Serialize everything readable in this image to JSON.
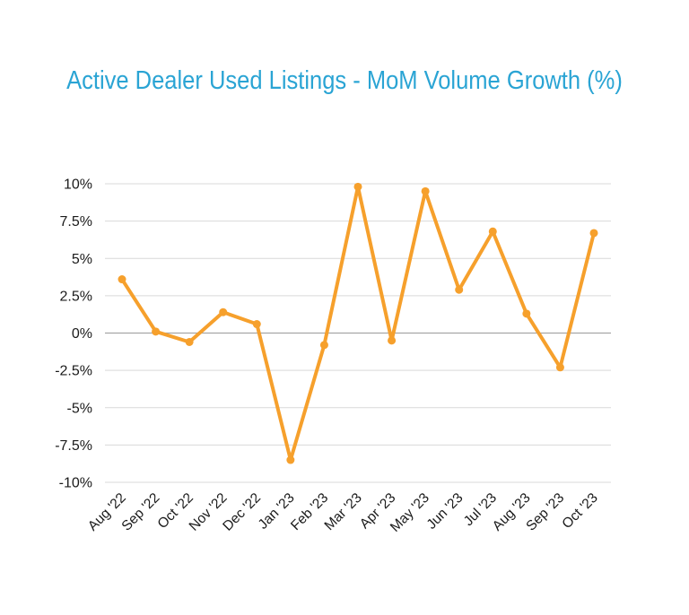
{
  "chart_data": {
    "type": "line",
    "title": "Active Dealer Used Listings - MoM Volume Growth (%)",
    "xlabel": "",
    "ylabel": "",
    "categories": [
      "Aug '22",
      "Sep '22",
      "Oct '22",
      "Nov '22",
      "Dec '22",
      "Jan '23",
      "Feb '23",
      "Mar '23",
      "Apr '23",
      "May '23",
      "Jun '23",
      "Jul '23",
      "Aug '23",
      "Sep '23",
      "Oct '23"
    ],
    "series": [
      {
        "values": [
          3.6,
          0.1,
          -0.6,
          1.4,
          0.6,
          -8.5,
          -0.8,
          9.8,
          -0.5,
          9.5,
          2.9,
          6.8,
          1.3,
          -2.3,
          6.7
        ],
        "color": "#f6a02c"
      }
    ],
    "ylim": [
      -10,
      10
    ],
    "yticks": [
      10,
      7.5,
      5,
      2.5,
      0,
      -2.5,
      -5,
      -7.5,
      -10
    ],
    "ytick_labels": [
      "10%",
      "7.5%",
      "5%",
      "2.5%",
      "0%",
      "-2.5%",
      "-5%",
      "-7.5%",
      "-10%"
    ],
    "grid": true,
    "legend": "none",
    "colors": {
      "title": "#2aa4d4",
      "grid": "#d9d9d9",
      "zero_line": "#a6a6a6",
      "line": "#f6a02c"
    }
  }
}
